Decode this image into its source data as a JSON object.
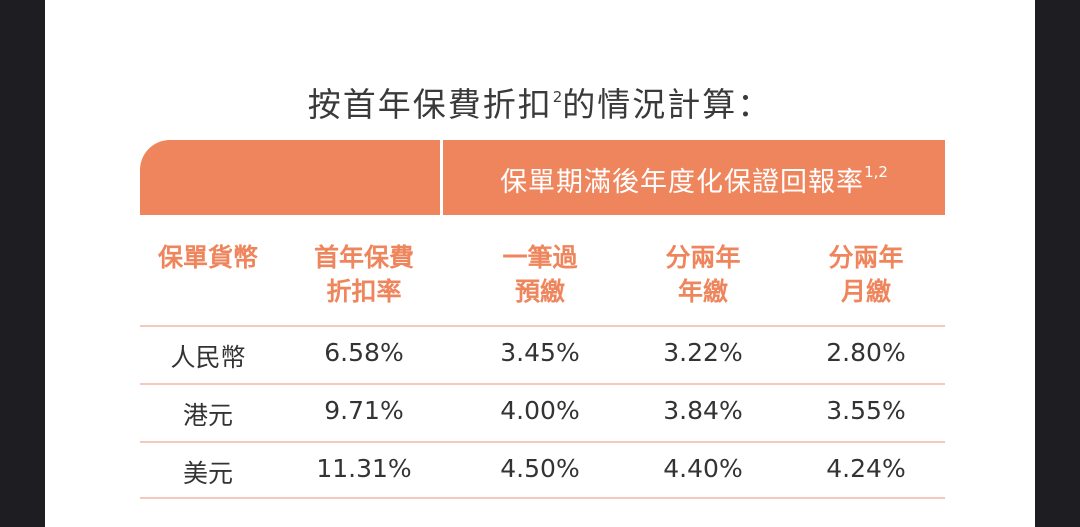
{
  "title": {
    "main": "按首年保費折扣",
    "sup": "2",
    "rest": "的情況計算："
  },
  "table": {
    "group_header": {
      "text": "保單期滿後年度化保證回報率",
      "sup": "1,2"
    },
    "columns": [
      [
        "保單貨幣"
      ],
      [
        "首年保費",
        "折扣率"
      ],
      [
        "一筆過",
        "預繳"
      ],
      [
        "分兩年",
        "年繳"
      ],
      [
        "分兩年",
        "月繳"
      ]
    ],
    "rows": [
      [
        "人民幣",
        "6.58%",
        "3.45%",
        "3.22%",
        "2.80%"
      ],
      [
        "港元",
        "9.71%",
        "4.00%",
        "3.84%",
        "3.55%"
      ],
      [
        "美元",
        "11.31%",
        "4.50%",
        "4.40%",
        "4.24%"
      ]
    ]
  }
}
